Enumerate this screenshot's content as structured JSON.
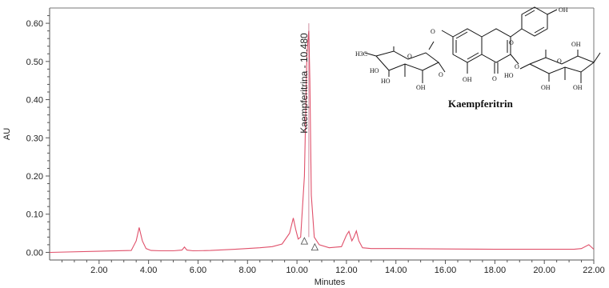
{
  "chart_data": {
    "type": "line",
    "xlabel": "Minutes",
    "ylabel": "AU",
    "xlim": [
      0.0,
      22.0
    ],
    "ylim": [
      -0.02,
      0.64
    ],
    "x_ticks": [
      2.0,
      4.0,
      6.0,
      8.0,
      10.0,
      12.0,
      14.0,
      16.0,
      18.0,
      20.0,
      22.0
    ],
    "x_tick_labels": [
      "2.00",
      "4.00",
      "6.00",
      "8.00",
      "10.00",
      "12.00",
      "14.00",
      "16.00",
      "18.00",
      "20.00",
      "22.00"
    ],
    "y_ticks": [
      0.0,
      0.1,
      0.2,
      0.3,
      0.4,
      0.5,
      0.6
    ],
    "y_tick_labels": [
      "0.00",
      "0.10",
      "0.20",
      "0.30",
      "0.40",
      "0.50",
      "0.60"
    ],
    "grid": false,
    "series": [
      {
        "color": "#e0506a",
        "x": [
          0.0,
          3.3,
          3.5,
          3.62,
          3.75,
          3.9,
          4.1,
          4.5,
          5.0,
          5.35,
          5.45,
          5.55,
          5.8,
          6.5,
          7.5,
          8.5,
          9.0,
          9.4,
          9.7,
          9.85,
          9.95,
          10.05,
          10.15,
          10.3,
          10.4,
          10.45,
          10.48,
          10.52,
          10.58,
          10.7,
          10.9,
          11.3,
          11.8,
          12.0,
          12.1,
          12.22,
          12.3,
          12.4,
          12.5,
          12.65,
          13.0,
          14.0,
          16.0,
          18.0,
          20.0,
          21.2,
          21.5,
          21.8,
          22.0
        ],
        "y": [
          0.0,
          0.005,
          0.03,
          0.065,
          0.03,
          0.01,
          0.005,
          0.004,
          0.004,
          0.006,
          0.014,
          0.006,
          0.004,
          0.005,
          0.008,
          0.012,
          0.015,
          0.022,
          0.05,
          0.09,
          0.06,
          0.035,
          0.04,
          0.2,
          0.52,
          0.56,
          0.58,
          0.45,
          0.15,
          0.04,
          0.02,
          0.012,
          0.015,
          0.045,
          0.055,
          0.03,
          0.04,
          0.056,
          0.03,
          0.012,
          0.01,
          0.01,
          0.009,
          0.008,
          0.008,
          0.008,
          0.01,
          0.02,
          0.008
        ]
      }
    ],
    "annotations": [
      {
        "text": "Kaempferitrina - 10.480",
        "x": 10.48
      }
    ]
  },
  "structure": {
    "title": "Kaempferitrin",
    "labels": [
      "OH",
      "O",
      "O",
      "O",
      "O",
      "O",
      "O",
      "H3C",
      "HO",
      "HO",
      "OH",
      "OH",
      "O",
      "HO",
      "OH",
      "OH",
      "OH"
    ]
  }
}
